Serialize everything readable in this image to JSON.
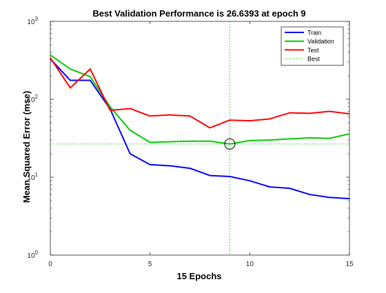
{
  "chart_data": {
    "type": "line",
    "title": "Best Validation Performance is 26.6393 at epoch 9",
    "xlabel": "15 Epochs",
    "ylabel": "Mean Squared Error  (mse)",
    "xlim": [
      0,
      15
    ],
    "ylim": [
      1,
      1000
    ],
    "yscale": "log",
    "grid": false,
    "legend_position": "top-right",
    "x_ticks": [
      0,
      5,
      10,
      15
    ],
    "x_tick_labels": [
      "0",
      "5",
      "10",
      "15"
    ],
    "y_ticks": [
      1,
      10,
      100,
      1000
    ],
    "y_tick_labels": [
      {
        "base": "10",
        "exp": "0"
      },
      {
        "base": "10",
        "exp": "1"
      },
      {
        "base": "10",
        "exp": "2"
      },
      {
        "base": "10",
        "exp": "3"
      }
    ],
    "x": [
      0,
      1,
      2,
      3,
      4,
      5,
      6,
      7,
      8,
      9,
      10,
      11,
      12,
      13,
      14,
      15
    ],
    "series": [
      {
        "name": "Train",
        "color": "#0000ff",
        "style": "solid",
        "values": [
          330,
          175,
          175,
          75,
          20,
          14.5,
          14,
          13,
          10.5,
          10.2,
          9,
          7.5,
          7.2,
          6,
          5.5,
          5.3
        ]
      },
      {
        "name": "Validation",
        "color": "#00cc00",
        "style": "solid",
        "values": [
          370,
          245,
          195,
          80,
          40,
          28,
          28.5,
          29,
          29,
          26.6393,
          29.5,
          30,
          31,
          32,
          31.5,
          36
        ]
      },
      {
        "name": "Test",
        "color": "#ff0000",
        "style": "solid",
        "values": [
          340,
          140,
          245,
          72,
          76,
          61,
          63,
          61,
          43,
          54,
          53,
          56,
          67,
          66,
          70,
          65
        ]
      }
    ],
    "best": {
      "name": "Best",
      "epoch": 9,
      "value": 26.6393,
      "color": "#00cc00",
      "style": "dotted"
    }
  }
}
